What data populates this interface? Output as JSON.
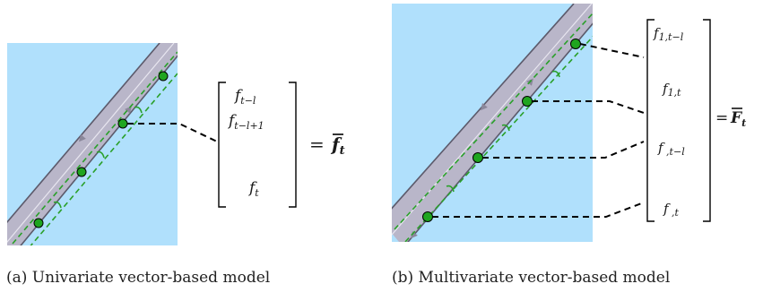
{
  "panel_a": {
    "vector_entries": [
      "f",
      "f",
      "f"
    ],
    "vector_subscripts": [
      "t−l",
      "t−l+1",
      "t"
    ],
    "equals": "=",
    "result_symbol": "f",
    "result_subscript": "t",
    "caption": "(a) Univariate vector-based model"
  },
  "panel_b": {
    "vector_entries": [
      "f",
      "f",
      "f",
      "f"
    ],
    "vector_subscripts": [
      "1,t−l",
      "1,t",
      " ,t−l",
      " ,t"
    ],
    "equals": "=",
    "result_symbol": "F",
    "result_subscript": "t",
    "caption": "(b) Multivariate vector-based model"
  },
  "colors": {
    "water": "#b0e0fc",
    "road": "#b9b6c9",
    "road_edge": "#5c5a6b",
    "sensor": "#1fa51f",
    "dashed_green": "#2aa02a",
    "leader_line": "#000000"
  }
}
